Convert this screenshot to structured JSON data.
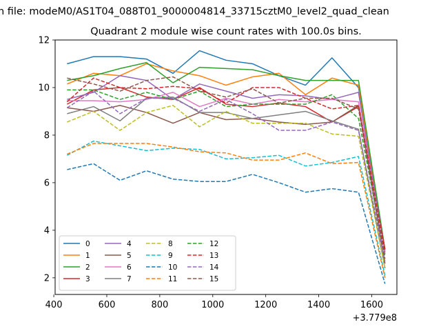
{
  "chart_data": {
    "type": "line",
    "suptitle": "n file: modeM0/AS1T04_088T01_9000004814_33715cztM0_level2_quad_clean",
    "title": "Quadrant 2 module wise count rates with 100.0s bins.",
    "x_offset_label": "+3.779e8",
    "x": [
      450,
      550,
      650,
      750,
      850,
      950,
      1050,
      1150,
      1250,
      1350,
      1450,
      1550,
      1650
    ],
    "xlim": [
      405,
      1695
    ],
    "ylim": [
      1.3,
      12.0
    ],
    "xticks": [
      400,
      600,
      800,
      1000,
      1200,
      1400,
      1600
    ],
    "yticks": [
      2,
      4,
      6,
      8,
      10,
      12
    ],
    "grid": false,
    "legend": {
      "placement": "lower-left",
      "columns": 4
    },
    "series": [
      {
        "name": "0",
        "color": "#1f77b4",
        "dash": "solid",
        "values": [
          11.0,
          11.3,
          11.3,
          11.2,
          10.6,
          11.55,
          11.15,
          11.0,
          10.5,
          10.1,
          11.25,
          10.0,
          3.1
        ]
      },
      {
        "name": "1",
        "color": "#ff7f0e",
        "dash": "solid",
        "values": [
          10.15,
          10.6,
          10.5,
          11.0,
          10.7,
          10.5,
          10.1,
          10.45,
          10.6,
          9.7,
          10.4,
          10.1,
          3.0
        ]
      },
      {
        "name": "2",
        "color": "#2ca02c",
        "dash": "solid",
        "values": [
          10.3,
          10.5,
          10.8,
          11.05,
          10.2,
          10.85,
          10.8,
          10.75,
          10.5,
          10.3,
          10.3,
          10.3,
          3.2
        ]
      },
      {
        "name": "3",
        "color": "#d62728",
        "dash": "solid",
        "values": [
          9.3,
          9.9,
          10.0,
          9.6,
          9.5,
          10.0,
          9.3,
          9.2,
          9.35,
          9.2,
          8.55,
          9.2,
          3.2
        ]
      },
      {
        "name": "4",
        "color": "#9467bd",
        "dash": "solid",
        "values": [
          9.5,
          9.8,
          10.5,
          10.3,
          9.5,
          10.15,
          9.85,
          9.55,
          9.7,
          9.65,
          9.5,
          9.8,
          3.0
        ]
      },
      {
        "name": "5",
        "color": "#8c564b",
        "dash": "solid",
        "values": [
          9.15,
          9.0,
          9.25,
          8.95,
          8.5,
          8.95,
          8.65,
          8.7,
          8.55,
          8.45,
          8.55,
          9.25,
          2.6
        ]
      },
      {
        "name": "6",
        "color": "#e377c2",
        "dash": "solid",
        "values": [
          9.45,
          9.45,
          9.4,
          9.5,
          9.8,
          9.2,
          9.55,
          9.3,
          9.5,
          9.4,
          9.5,
          9.4,
          3.0
        ]
      },
      {
        "name": "7",
        "color": "#7f7f7f",
        "dash": "solid",
        "values": [
          8.9,
          9.2,
          8.6,
          9.55,
          9.6,
          8.95,
          8.95,
          8.7,
          8.85,
          9.0,
          8.6,
          8.25,
          2.4
        ]
      },
      {
        "name": "8",
        "color": "#bcbd22",
        "dash": "dash",
        "values": [
          8.55,
          9.0,
          8.2,
          8.95,
          9.25,
          8.35,
          9.0,
          8.5,
          8.5,
          8.5,
          8.05,
          7.95,
          2.4
        ]
      },
      {
        "name": "9",
        "color": "#17becf",
        "dash": "dash",
        "values": [
          7.15,
          7.75,
          7.55,
          7.35,
          7.45,
          7.4,
          7.0,
          7.05,
          7.15,
          6.7,
          6.85,
          7.1,
          2.1
        ]
      },
      {
        "name": "10",
        "color": "#1f77b4",
        "dash": "dash",
        "values": [
          6.55,
          6.8,
          6.1,
          6.5,
          6.15,
          6.05,
          6.05,
          6.35,
          6.0,
          5.6,
          5.75,
          5.6,
          1.75
        ]
      },
      {
        "name": "11",
        "color": "#ff7f0e",
        "dash": "dash",
        "values": [
          7.2,
          7.65,
          7.65,
          7.65,
          7.5,
          7.3,
          7.25,
          6.95,
          6.95,
          7.25,
          6.8,
          6.85,
          2.0
        ]
      },
      {
        "name": "12",
        "color": "#2ca02c",
        "dash": "dash",
        "values": [
          9.9,
          9.9,
          9.5,
          9.8,
          9.5,
          9.85,
          9.2,
          9.3,
          9.3,
          9.3,
          9.7,
          8.7,
          2.9
        ]
      },
      {
        "name": "13",
        "color": "#d62728",
        "dash": "dash",
        "values": [
          9.4,
          10.4,
          10.0,
          9.95,
          10.05,
          9.95,
          9.35,
          10.0,
          10.0,
          9.55,
          9.1,
          9.25,
          3.1
        ]
      },
      {
        "name": "14",
        "color": "#9467bd",
        "dash": "dash",
        "values": [
          9.15,
          9.85,
          8.9,
          9.55,
          9.55,
          9.0,
          9.5,
          8.9,
          8.2,
          8.2,
          8.55,
          8.2,
          2.7
        ]
      },
      {
        "name": "15",
        "color": "#8c564b",
        "dash": "dash",
        "values": [
          10.4,
          10.15,
          9.85,
          10.3,
          10.45,
          9.85,
          9.6,
          9.95,
          9.35,
          9.55,
          9.55,
          9.1,
          2.8
        ]
      }
    ]
  }
}
